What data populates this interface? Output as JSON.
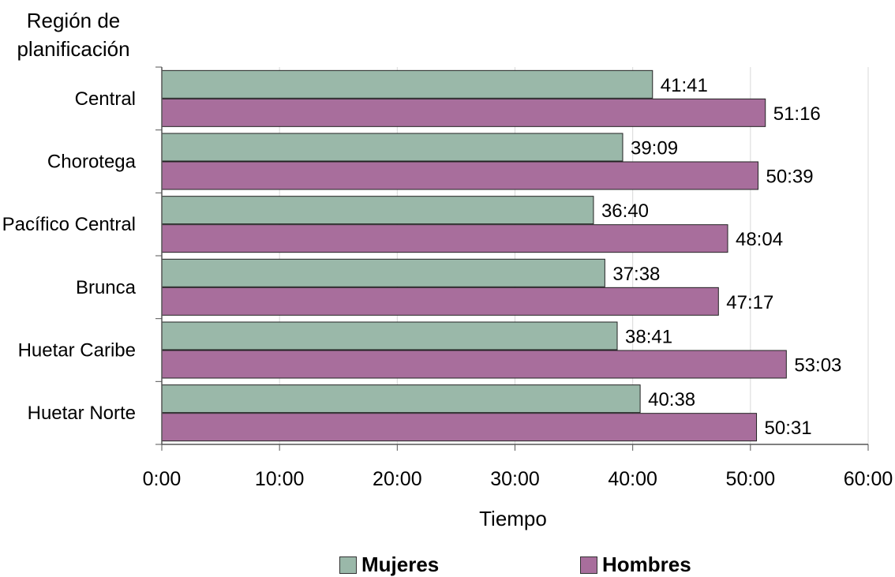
{
  "chart_data": {
    "type": "bar",
    "orientation": "horizontal",
    "ylabel": "Región de planificación",
    "xlabel": "Tiempo",
    "categories": [
      "Central",
      "Chorotega",
      "Pacífico Central",
      "Brunca",
      "Huetar Caribe",
      "Huetar Norte"
    ],
    "series": [
      {
        "name": "Mujeres",
        "color": "#9ab8a9",
        "values": [
          41.683,
          39.15,
          36.667,
          37.633,
          38.683,
          40.633
        ],
        "labels": [
          "41:41",
          "39:09",
          "36:40",
          "37:38",
          "38:41",
          "40:38"
        ]
      },
      {
        "name": "Hombres",
        "color": "#a86e9c",
        "values": [
          51.267,
          50.65,
          48.067,
          47.283,
          53.05,
          50.517
        ],
        "labels": [
          "51:16",
          "50:39",
          "48:04",
          "47:17",
          "53:03",
          "50:31"
        ]
      }
    ],
    "xlim": [
      0,
      60
    ],
    "xticks": [
      0,
      10,
      20,
      30,
      40,
      50,
      60
    ],
    "xtick_labels": [
      "0:00",
      "10:00",
      "20:00",
      "30:00",
      "40:00",
      "50:00",
      "60:00"
    ],
    "grid": "vertical",
    "legend": "bottom"
  }
}
